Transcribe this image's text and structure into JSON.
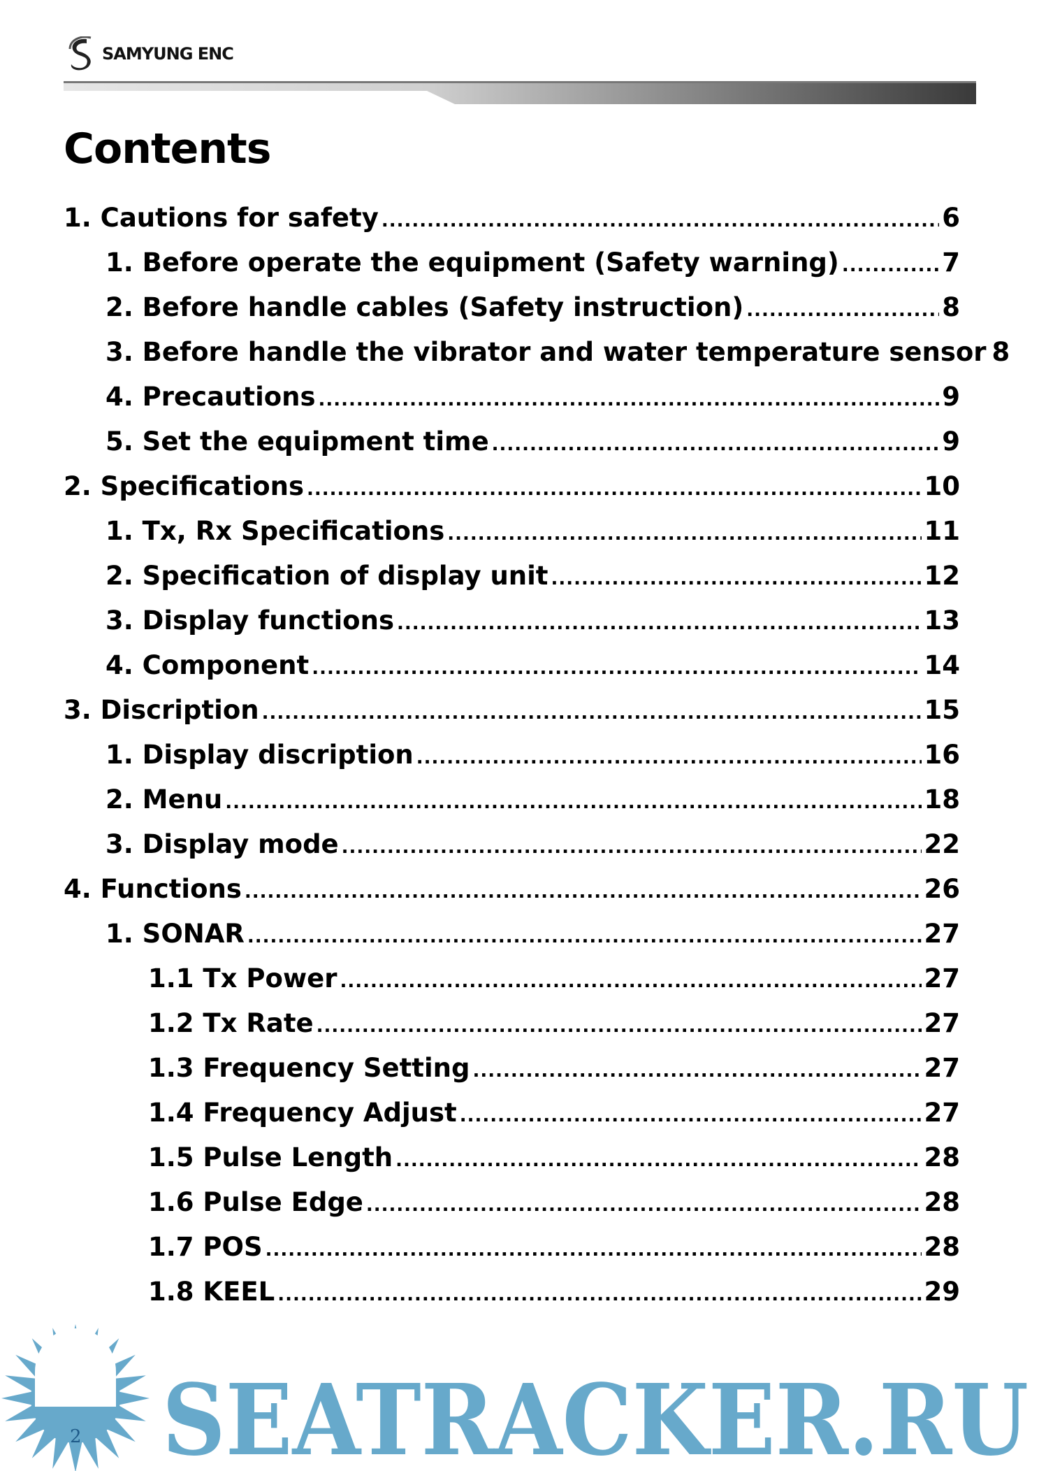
{
  "header": {
    "brand": "SAMYUNG ENC"
  },
  "title": "Contents",
  "toc": [
    {
      "level": 1,
      "label": "1. Cautions for safety",
      "page": "6"
    },
    {
      "level": 2,
      "label": "1. Before operate the equipment (Safety warning)",
      "page": "7"
    },
    {
      "level": 2,
      "label": "2. Before handle cables (Safety instruction)",
      "page": "8"
    },
    {
      "level": 2,
      "label": "3. Before handle the vibrator and water temperature sensor",
      "page": "8"
    },
    {
      "level": 2,
      "label": "4. Precautions",
      "page": "9"
    },
    {
      "level": 2,
      "label": "5. Set the equipment time",
      "page": "9"
    },
    {
      "level": 1,
      "label": "2. Specifications",
      "page": "10"
    },
    {
      "level": 2,
      "label": "1. Tx, Rx Specifications",
      "page": "11"
    },
    {
      "level": 2,
      "label": "2. Specification of display unit",
      "page": "12"
    },
    {
      "level": 2,
      "label": "3. Display functions",
      "page": "13"
    },
    {
      "level": 2,
      "label": "4. Component",
      "page": "14"
    },
    {
      "level": 1,
      "label": "3. Discription",
      "page": "15"
    },
    {
      "level": 2,
      "label": "1. Display discription",
      "page": "16"
    },
    {
      "level": 2,
      "label": "2. Menu",
      "page": "18"
    },
    {
      "level": 2,
      "label": "3. Display mode",
      "page": "22"
    },
    {
      "level": 1,
      "label": "4. Functions",
      "page": "26"
    },
    {
      "level": 2,
      "label": "1. SONAR",
      "page": "27"
    },
    {
      "level": 3,
      "label": "1.1 Tx Power",
      "page": "27"
    },
    {
      "level": 3,
      "label": "1.2 Tx Rate",
      "page": "27"
    },
    {
      "level": 3,
      "label": "1.3 Frequency Setting",
      "page": "27"
    },
    {
      "level": 3,
      "label": "1.4 Frequency Adjust",
      "page": "27"
    },
    {
      "level": 3,
      "label": "1.5 Pulse Length",
      "page": "28"
    },
    {
      "level": 3,
      "label": "1.6 Pulse Edge",
      "page": "28"
    },
    {
      "level": 3,
      "label": "1.7 POS",
      "page": "28"
    },
    {
      "level": 3,
      "label": "1.8 KEEL",
      "page": "29"
    }
  ],
  "watermark": {
    "text": "SEATRACKER.RU",
    "color": "#67a9cb"
  },
  "footer": {
    "page_number": "2"
  }
}
